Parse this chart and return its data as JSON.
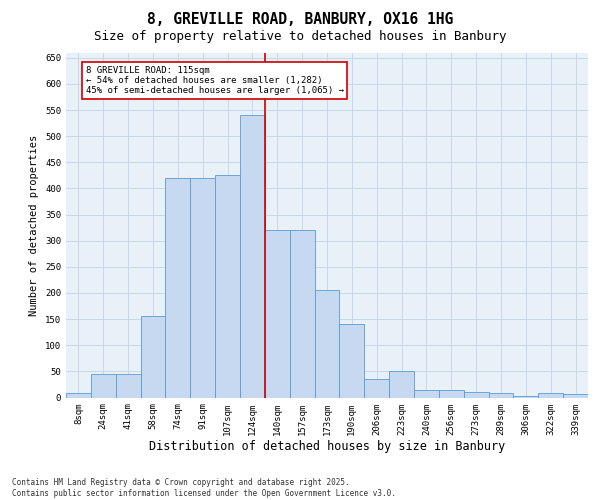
{
  "title1": "8, GREVILLE ROAD, BANBURY, OX16 1HG",
  "title2": "Size of property relative to detached houses in Banbury",
  "xlabel": "Distribution of detached houses by size in Banbury",
  "ylabel": "Number of detached properties",
  "categories": [
    "8sqm",
    "24sqm",
    "41sqm",
    "58sqm",
    "74sqm",
    "91sqm",
    "107sqm",
    "124sqm",
    "140sqm",
    "157sqm",
    "173sqm",
    "190sqm",
    "206sqm",
    "223sqm",
    "240sqm",
    "256sqm",
    "273sqm",
    "289sqm",
    "306sqm",
    "322sqm",
    "339sqm"
  ],
  "values": [
    8,
    45,
    45,
    155,
    420,
    420,
    425,
    540,
    320,
    320,
    205,
    140,
    35,
    50,
    15,
    15,
    10,
    8,
    3,
    8,
    7
  ],
  "bar_color": "#c6d9f0",
  "bar_edge_color": "#5b9bd5",
  "vline_x_index": 7.5,
  "vline_color": "#cc0000",
  "annotation_text": "8 GREVILLE ROAD: 115sqm\n← 54% of detached houses are smaller (1,282)\n45% of semi-detached houses are larger (1,065) →",
  "annotation_box_color": "#ffffff",
  "annotation_box_edge": "#cc0000",
  "ylim": [
    0,
    660
  ],
  "yticks": [
    0,
    50,
    100,
    150,
    200,
    250,
    300,
    350,
    400,
    450,
    500,
    550,
    600,
    650
  ],
  "grid_color": "#c8d8e8",
  "background_color": "#e8f0f8",
  "footer_text": "Contains HM Land Registry data © Crown copyright and database right 2025.\nContains public sector information licensed under the Open Government Licence v3.0.",
  "title1_fontsize": 10.5,
  "title2_fontsize": 9,
  "xlabel_fontsize": 8.5,
  "ylabel_fontsize": 7.5,
  "tick_fontsize": 6.5,
  "annotation_fontsize": 6.5,
  "footer_fontsize": 5.5
}
